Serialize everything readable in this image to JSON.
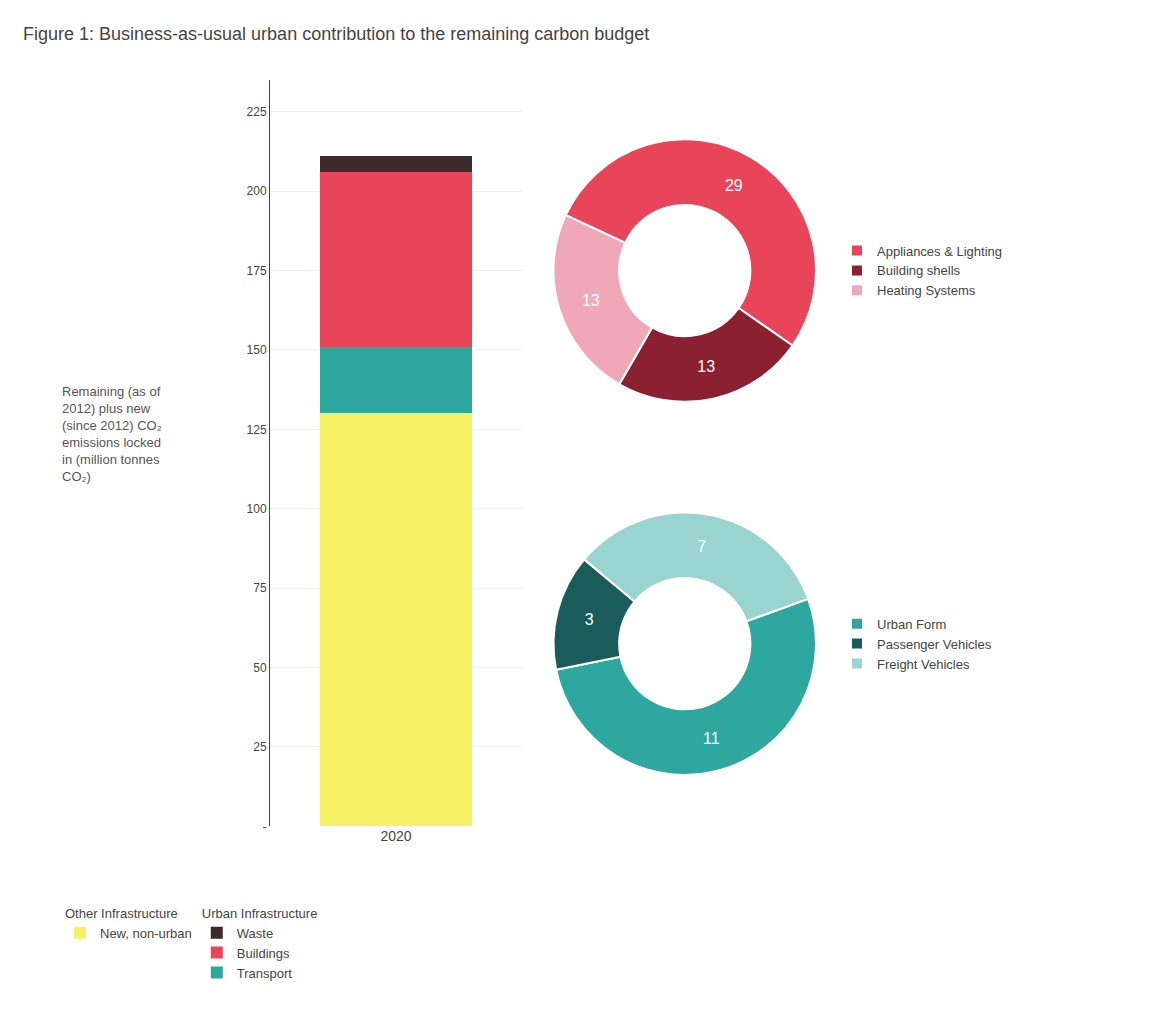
{
  "chart_data": [
    {
      "type": "bar",
      "title": "Figure 1: Business-as-usual urban contribution to the remaining carbon budget",
      "ylabel": "Remaining (as of 2012) plus new (since 2012) CO₂ emissions locked in (million tonnes CO₂)",
      "stacked": true,
      "categories": [
        "2020"
      ],
      "series": [
        {
          "name": "New, non-urban",
          "group": "Other Infrastructure",
          "color": "#f5f064",
          "values": [
            130
          ]
        },
        {
          "name": "Transport",
          "group": "Urban Infrastructure",
          "color": "#2ea89e",
          "values": [
            21
          ]
        },
        {
          "name": "Buildings",
          "group": "Urban Infrastructure",
          "color": "#e8445a",
          "values": [
            55
          ]
        },
        {
          "name": "Waste",
          "group": "Urban Infrastructure",
          "color": "#3d2b2b",
          "values": [
            5
          ]
        }
      ],
      "ylim": [
        0,
        235
      ],
      "yticks": [
        {
          "value": 0,
          "label": "-"
        },
        25,
        50,
        75,
        100,
        125,
        150,
        175,
        200,
        225
      ],
      "grid": true,
      "legend": "bottom"
    },
    {
      "type": "donut",
      "categories": [
        "Appliances & Lighting",
        "Building shells",
        "Heating Systems"
      ],
      "values": [
        29,
        13,
        13
      ],
      "colors": [
        "#e8445a",
        "#8b2030",
        "#f0a8b8"
      ],
      "data_labels": true,
      "legend": "right"
    },
    {
      "type": "donut",
      "categories": [
        "Urban Form",
        "Passenger Vehicles",
        "Freight Vehicles"
      ],
      "values": [
        11,
        3,
        7
      ],
      "colors": [
        "#2ea89e",
        "#1a5c5a",
        "#99d4d0"
      ],
      "data_labels": true,
      "legend": "right"
    }
  ]
}
